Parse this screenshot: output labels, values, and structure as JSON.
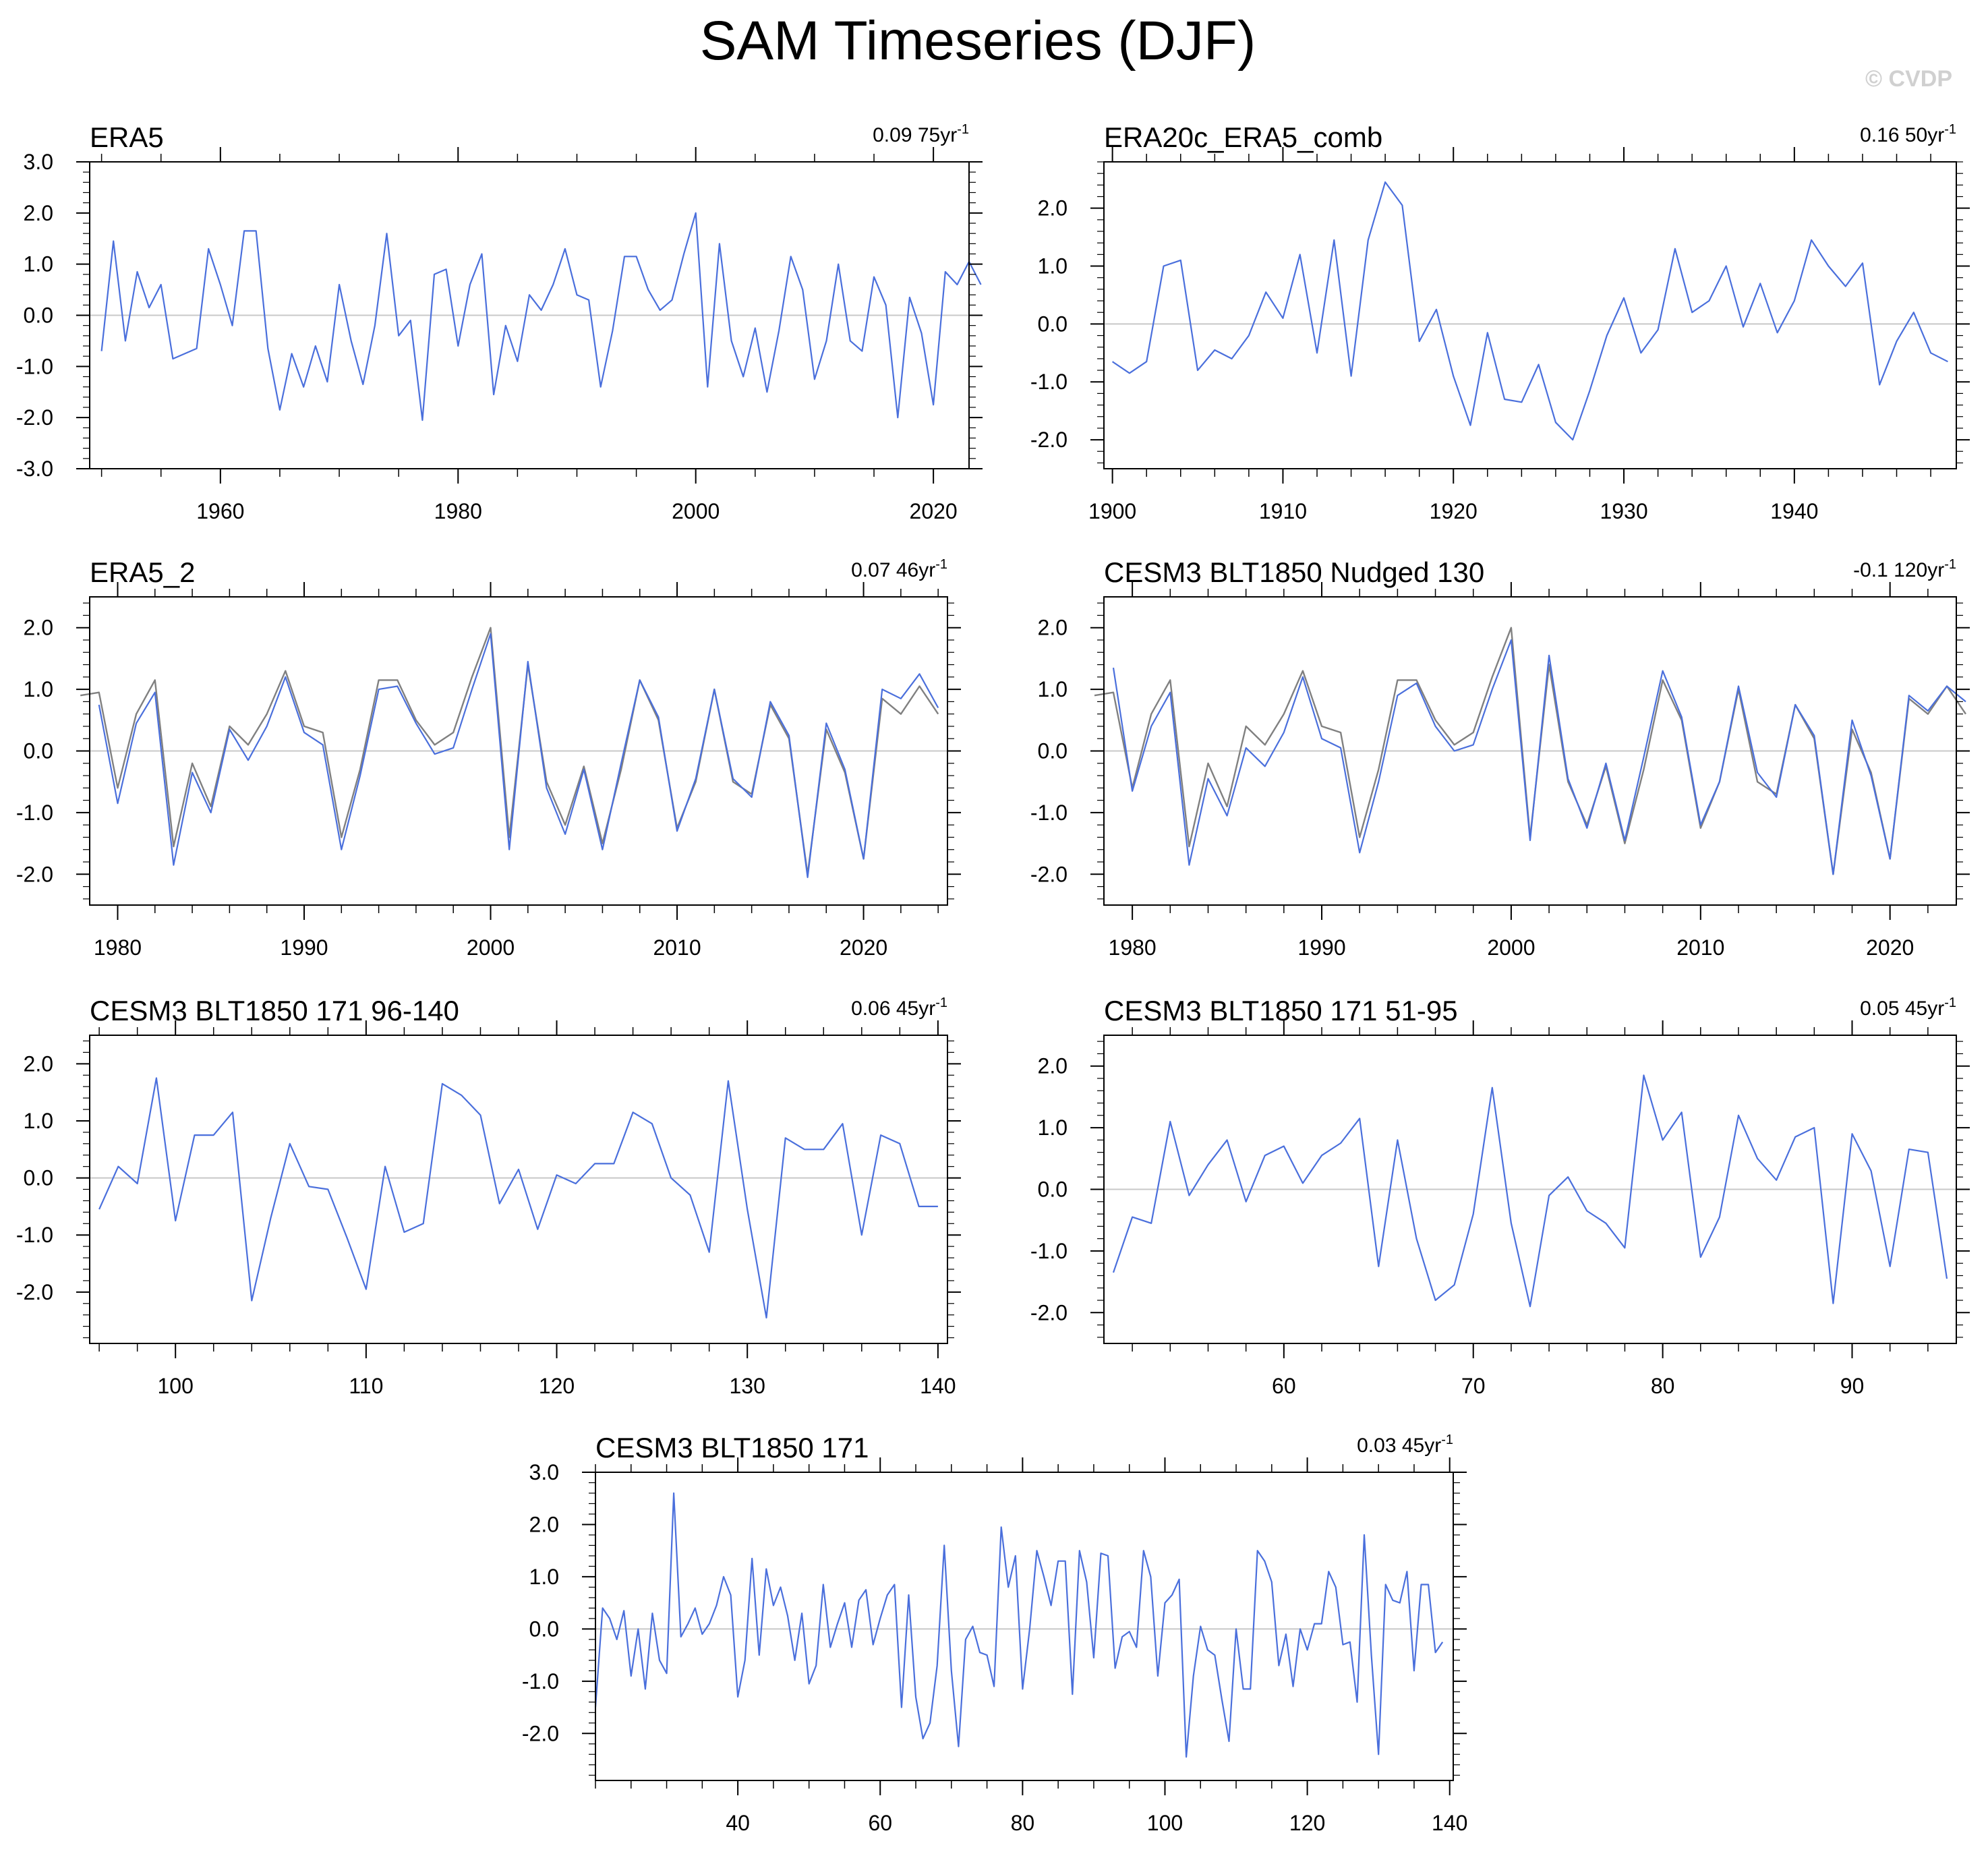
{
  "title": "SAM Timeseries (DJF)",
  "watermark": "© CVDP",
  "colors": {
    "model": "#4a6fdc",
    "reference": "#808080",
    "zero": "#c8c8c8",
    "frame": "#000000"
  },
  "chart_data": [
    {
      "type": "line",
      "title": "ERA5",
      "trend_value": "0.09",
      "trend_period": "75yr",
      "trend_sup": "-1",
      "xlim": [
        1949,
        2023
      ],
      "ylim": [
        -3,
        3
      ],
      "xticks_major": [
        1960,
        1980,
        2000,
        2020
      ],
      "xticks_minor_step": 5,
      "yticks": [
        -3,
        -2,
        -1,
        0,
        1,
        2,
        3
      ],
      "ytick_labels": [
        "-3.0",
        "-2.0",
        "-1.0",
        "0.0",
        "1.0",
        "2.0",
        "3.0"
      ],
      "series": [
        {
          "role": "model",
          "x_start": 1950,
          "values": [
            -0.7,
            1.45,
            -0.5,
            0.85,
            0.15,
            0.6,
            -0.85,
            -0.75,
            -0.65,
            1.3,
            0.6,
            -0.2,
            1.65,
            1.65,
            -0.65,
            -1.85,
            -0.75,
            -1.4,
            -0.6,
            -1.3,
            0.6,
            -0.5,
            -1.35,
            -0.2,
            1.6,
            -0.4,
            -0.1,
            -2.05,
            0.8,
            0.9,
            -0.6,
            0.6,
            1.2,
            -1.55,
            -0.2,
            -0.9,
            0.4,
            0.1,
            0.6,
            1.3,
            0.4,
            0.3,
            -1.4,
            -0.3,
            1.15,
            1.15,
            0.5,
            0.1,
            0.3,
            1.2,
            2.0,
            -1.4,
            1.4,
            -0.5,
            -1.2,
            -0.25,
            -1.5,
            -0.3,
            1.15,
            0.5,
            -1.25,
            -0.5,
            1.0,
            -0.5,
            -0.7,
            0.75,
            0.2,
            -2.0,
            0.35,
            -0.35,
            -1.75,
            0.85,
            0.6,
            1.05,
            0.6
          ]
        }
      ]
    },
    {
      "type": "line",
      "title": "ERA20c_ERA5_comb",
      "trend_value": "0.16",
      "trend_period": "50yr",
      "trend_sup": "-1",
      "xlim": [
        1899.5,
        1949.5
      ],
      "ylim": [
        -2.5,
        2.8
      ],
      "xticks_major": [
        1900,
        1910,
        1920,
        1930,
        1940
      ],
      "xticks_minor_step": 2,
      "yticks": [
        -2,
        -1,
        0,
        1,
        2
      ],
      "ytick_labels": [
        "-2.0",
        "-1.0",
        "0.0",
        "1.0",
        "2.0"
      ],
      "series": [
        {
          "role": "model",
          "x_start": 1900,
          "values": [
            -0.65,
            -0.85,
            -0.65,
            1.0,
            1.1,
            -0.8,
            -0.45,
            -0.6,
            -0.2,
            0.55,
            0.1,
            1.2,
            -0.5,
            1.45,
            -0.9,
            1.45,
            2.45,
            2.05,
            -0.3,
            0.25,
            -0.9,
            -1.75,
            -0.15,
            -1.3,
            -1.35,
            -0.7,
            -1.7,
            -2.0,
            -1.15,
            -0.2,
            0.45,
            -0.5,
            -0.1,
            1.3,
            0.2,
            0.4,
            1.0,
            -0.05,
            0.7,
            -0.15,
            0.4,
            1.45,
            1.0,
            0.65,
            1.05,
            -1.05,
            -0.3,
            0.2,
            -0.5,
            -0.65
          ]
        }
      ]
    },
    {
      "type": "line",
      "title": "ERA5_2",
      "trend_value": "0.07",
      "trend_period": "46yr",
      "trend_sup": "-1",
      "xlim": [
        1978.5,
        2024.5
      ],
      "ylim": [
        -2.5,
        2.5
      ],
      "xticks_major": [
        1980,
        1990,
        2000,
        2010,
        2020
      ],
      "xticks_minor_step": 2,
      "yticks": [
        -2,
        -1,
        0,
        1,
        2
      ],
      "ytick_labels": [
        "-2.0",
        "-1.0",
        "0.0",
        "1.0",
        "2.0"
      ],
      "series": [
        {
          "role": "reference",
          "x_start": 1978,
          "values": [
            0.9,
            0.95,
            -0.6,
            0.6,
            1.15,
            -1.55,
            -0.2,
            -0.9,
            0.4,
            0.1,
            0.6,
            1.3,
            0.4,
            0.3,
            -1.4,
            -0.3,
            1.15,
            1.15,
            0.5,
            0.1,
            0.3,
            1.2,
            2.0,
            -1.4,
            1.4,
            -0.5,
            -1.2,
            -0.25,
            -1.5,
            -0.3,
            1.15,
            0.5,
            -1.25,
            -0.5,
            1.0,
            -0.5,
            -0.7,
            0.75,
            0.2,
            -2.0,
            0.35,
            -0.35,
            -1.75,
            0.85,
            0.6,
            1.05,
            0.6
          ]
        },
        {
          "role": "model",
          "x_start": 1979,
          "values": [
            0.75,
            -0.85,
            0.45,
            0.95,
            -1.85,
            -0.35,
            -1.0,
            0.35,
            -0.15,
            0.4,
            1.2,
            0.3,
            0.1,
            -1.6,
            -0.4,
            1.0,
            1.05,
            0.45,
            -0.05,
            0.05,
            1.0,
            1.9,
            -1.6,
            1.45,
            -0.6,
            -1.35,
            -0.3,
            -1.6,
            -0.2,
            1.15,
            0.55,
            -1.3,
            -0.45,
            1.0,
            -0.45,
            -0.75,
            0.8,
            0.25,
            -2.05,
            0.45,
            -0.3,
            -1.75,
            1.0,
            0.85,
            1.25,
            0.7
          ]
        }
      ]
    },
    {
      "type": "line",
      "title": "CESM3 BLT1850 Nudged 130",
      "trend_value": "-0.1",
      "trend_period": "120yr",
      "trend_sup": "-1",
      "xlim": [
        1978.5,
        2023.5
      ],
      "ylim": [
        -2.5,
        2.5
      ],
      "xticks_major": [
        1980,
        1990,
        2000,
        2010,
        2020
      ],
      "xticks_minor_step": 2,
      "yticks": [
        -2,
        -1,
        0,
        1,
        2
      ],
      "ytick_labels": [
        "-2.0",
        "-1.0",
        "0.0",
        "1.0",
        "2.0"
      ],
      "series": [
        {
          "role": "reference",
          "x_start": 1978,
          "values": [
            0.9,
            0.95,
            -0.6,
            0.6,
            1.15,
            -1.55,
            -0.2,
            -0.9,
            0.4,
            0.1,
            0.6,
            1.3,
            0.4,
            0.3,
            -1.4,
            -0.3,
            1.15,
            1.15,
            0.5,
            0.1,
            0.3,
            1.2,
            2.0,
            -1.4,
            1.4,
            -0.5,
            -1.2,
            -0.25,
            -1.5,
            -0.3,
            1.15,
            0.5,
            -1.25,
            -0.5,
            1.0,
            -0.5,
            -0.7,
            0.75,
            0.2,
            -2.0,
            0.35,
            -0.35,
            -1.75,
            0.85,
            0.6,
            1.05,
            0.6
          ]
        },
        {
          "role": "model",
          "x_start": 1979,
          "values": [
            1.35,
            -0.65,
            0.4,
            0.95,
            -1.85,
            -0.45,
            -1.05,
            0.05,
            -0.25,
            0.3,
            1.2,
            0.2,
            0.05,
            -1.65,
            -0.5,
            0.9,
            1.1,
            0.4,
            0.0,
            0.1,
            1.0,
            1.8,
            -1.45,
            1.55,
            -0.45,
            -1.25,
            -0.2,
            -1.45,
            -0.1,
            1.3,
            0.55,
            -1.2,
            -0.5,
            1.05,
            -0.35,
            -0.75,
            0.75,
            0.25,
            -2.0,
            0.5,
            -0.4,
            -1.75,
            0.9,
            0.65,
            1.05,
            0.8
          ]
        }
      ]
    },
    {
      "type": "line",
      "title": "CESM3 BLT1850 171 96-140",
      "trend_value": "0.06",
      "trend_period": "45yr",
      "trend_sup": "-1",
      "xlim": [
        95.5,
        140.5
      ],
      "ylim": [
        -2.9,
        2.5
      ],
      "xticks_major": [
        100,
        110,
        120,
        130,
        140
      ],
      "xticks_minor_step": 2,
      "yticks": [
        -2,
        -1,
        0,
        1,
        2
      ],
      "ytick_labels": [
        "-2.0",
        "-1.0",
        "0.0",
        "1.0",
        "2.0"
      ],
      "series": [
        {
          "role": "model",
          "x_start": 96,
          "values": [
            -0.55,
            0.2,
            -0.1,
            1.75,
            -0.75,
            0.75,
            0.75,
            1.15,
            -2.15,
            -0.7,
            0.6,
            -0.15,
            -0.2,
            -1.05,
            -1.95,
            0.2,
            -0.95,
            -0.8,
            1.65,
            1.45,
            1.1,
            -0.45,
            0.15,
            -0.9,
            0.05,
            -0.1,
            0.25,
            0.25,
            1.15,
            0.95,
            0.0,
            -0.3,
            -1.3,
            1.7,
            -0.55,
            -2.45,
            0.7,
            0.5,
            0.5,
            0.95,
            -1.0,
            0.75,
            0.6,
            -0.5,
            -0.5
          ]
        }
      ]
    },
    {
      "type": "line",
      "title": "CESM3 BLT1850 171 51-95",
      "trend_value": "0.05",
      "trend_period": "45yr",
      "trend_sup": "-1",
      "xlim": [
        50.5,
        95.5
      ],
      "ylim": [
        -2.5,
        2.5
      ],
      "xticks_major": [
        60,
        70,
        80,
        90
      ],
      "xticks_minor_step": 2,
      "yticks": [
        -2,
        -1,
        0,
        1,
        2
      ],
      "ytick_labels": [
        "-2.0",
        "-1.0",
        "0.0",
        "1.0",
        "2.0"
      ],
      "series": [
        {
          "role": "model",
          "x_start": 51,
          "values": [
            -1.35,
            -0.45,
            -0.55,
            1.1,
            -0.1,
            0.4,
            0.8,
            -0.2,
            0.55,
            0.7,
            0.1,
            0.55,
            0.75,
            1.15,
            -1.25,
            0.8,
            -0.8,
            -1.8,
            -1.55,
            -0.4,
            1.65,
            -0.55,
            -1.9,
            -0.1,
            0.2,
            -0.35,
            -0.55,
            -0.95,
            1.85,
            0.8,
            1.25,
            -1.1,
            -0.45,
            1.2,
            0.5,
            0.15,
            0.85,
            1.0,
            -1.85,
            0.9,
            0.3,
            -1.25,
            0.65,
            0.6,
            -1.45
          ]
        }
      ]
    },
    {
      "type": "line",
      "title": "CESM3 BLT1850 171",
      "trend_value": "0.03",
      "trend_period": "45yr",
      "trend_sup": "-1",
      "xlim": [
        20,
        140.5
      ],
      "ylim": [
        -2.9,
        3.0
      ],
      "xticks_major": [
        40,
        60,
        80,
        100,
        120,
        140
      ],
      "xticks_minor_step": 5,
      "yticks": [
        -2,
        -1,
        0,
        1,
        2,
        3
      ],
      "ytick_labels": [
        "-2.0",
        "-1.0",
        "0.0",
        "1.0",
        "2.0",
        "3.0"
      ],
      "series": [
        {
          "role": "model",
          "x_start": 20,
          "values": [
            -1.5,
            0.4,
            0.2,
            -0.2,
            0.35,
            -0.9,
            0.0,
            -1.15,
            0.3,
            -0.6,
            -0.85,
            2.6,
            -0.15,
            0.1,
            0.4,
            -0.1,
            0.1,
            0.45,
            1.0,
            0.65,
            -1.3,
            -0.6,
            1.35,
            -0.5,
            1.15,
            0.45,
            0.8,
            0.25,
            -0.6,
            0.3,
            -1.05,
            -0.7,
            0.85,
            -0.35,
            0.1,
            0.5,
            -0.35,
            0.55,
            0.75,
            -0.3,
            0.2,
            0.65,
            0.85,
            -1.5,
            0.65,
            -1.3,
            -2.1,
            -1.8,
            -0.7,
            1.6,
            -0.8,
            -2.25,
            -0.2,
            0.05,
            -0.45,
            -0.5,
            -1.1,
            1.95,
            0.8,
            1.4,
            -1.15,
            0.0,
            1.5,
            1.0,
            0.45,
            1.3,
            1.3,
            -1.25,
            1.5,
            0.9,
            -0.55,
            1.45,
            1.4,
            -0.75,
            -0.15,
            -0.05,
            -0.35,
            1.5,
            1.0,
            -0.9,
            0.5,
            0.65,
            0.95,
            -2.45,
            -0.9,
            0.05,
            -0.4,
            -0.5,
            -1.35,
            -2.15,
            0.0,
            -1.15,
            -1.15,
            1.5,
            1.3,
            0.9,
            -0.7,
            -0.1,
            -1.1,
            0.0,
            -0.4,
            0.1,
            0.1,
            1.1,
            0.8,
            -0.3,
            -0.25,
            -1.4,
            1.8,
            -0.5,
            -2.4,
            0.85,
            0.55,
            0.5,
            1.1,
            -0.8,
            0.85,
            0.85,
            -0.45,
            -0.25
          ]
        }
      ]
    }
  ]
}
